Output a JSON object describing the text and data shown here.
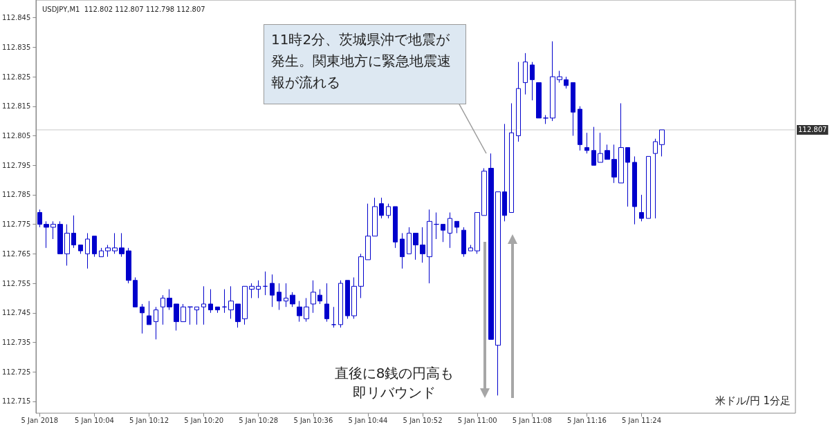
{
  "chart_data": {
    "type": "candlestick",
    "title": "USDJPY,M1  112.802 112.807 112.798 112.807",
    "categories": [
      "5 Jan 2018",
      null,
      null,
      null,
      null,
      null,
      null,
      null,
      "5 Jan 10:04",
      null,
      null,
      null,
      null,
      null,
      null,
      null,
      "5 Jan 10:12",
      null,
      null,
      null,
      null,
      null,
      null,
      null,
      "5 Jan 10:20",
      null,
      null,
      null,
      null,
      null,
      null,
      null,
      "5 Jan 10:28",
      null,
      null,
      null,
      null,
      null,
      null,
      null,
      "5 Jan 10:36",
      null,
      null,
      null,
      null,
      null,
      null,
      null,
      "5 Jan 10:44",
      null,
      null,
      null,
      null,
      null,
      null,
      null,
      "5 Jan 10:52",
      null,
      null,
      null,
      null,
      null,
      null,
      null,
      "5 Jan 11:00",
      null,
      null,
      null,
      null,
      null,
      null,
      null,
      "5 Jan 11:08",
      null,
      null,
      null,
      null,
      null,
      null,
      null,
      "5 Jan 11:16",
      null,
      null,
      null,
      null,
      null,
      null,
      null,
      "5 Jan 11:24",
      null,
      null,
      null
    ],
    "series": [
      {
        "color": "#0000cc",
        "ohlc": [
          [
            112.779,
            112.78,
            112.774,
            112.775
          ],
          [
            112.775,
            112.776,
            112.767,
            112.774
          ],
          [
            112.774,
            112.776,
            112.77,
            112.775
          ],
          [
            112.775,
            112.776,
            112.765,
            112.765
          ],
          [
            112.765,
            112.775,
            112.761,
            112.772
          ],
          [
            112.772,
            112.778,
            112.767,
            112.768
          ],
          [
            112.768,
            112.768,
            112.765,
            112.766
          ],
          [
            112.765,
            112.772,
            112.76,
            112.77
          ],
          [
            112.771,
            112.771,
            112.764,
            112.765
          ],
          [
            112.764,
            112.767,
            112.764,
            112.766
          ],
          [
            112.766,
            112.768,
            112.764,
            112.767
          ],
          [
            112.766,
            112.772,
            112.765,
            112.767
          ],
          [
            112.767,
            112.772,
            112.764,
            112.765
          ],
          [
            112.766,
            112.767,
            112.755,
            112.756
          ],
          [
            112.756,
            112.757,
            112.747,
            112.747
          ],
          [
            112.747,
            112.748,
            112.738,
            112.745
          ],
          [
            112.744,
            112.749,
            112.741,
            112.741
          ],
          [
            112.742,
            112.747,
            112.736,
            112.746
          ],
          [
            112.747,
            112.751,
            112.741,
            112.75
          ],
          [
            112.75,
            112.753,
            112.746,
            112.747
          ],
          [
            112.748,
            112.748,
            112.739,
            112.742
          ],
          [
            112.742,
            112.748,
            112.742,
            112.747
          ],
          [
            112.747,
            112.747,
            112.741,
            112.747
          ],
          [
            112.746,
            112.747,
            112.741,
            112.747
          ],
          [
            112.747,
            112.754,
            112.741,
            112.748
          ],
          [
            112.748,
            112.753,
            112.745,
            112.746
          ],
          [
            112.747,
            112.747,
            112.745,
            112.746
          ],
          [
            112.747,
            112.753,
            112.745,
            112.747
          ],
          [
            112.746,
            112.754,
            112.743,
            112.749
          ],
          [
            112.748,
            112.748,
            112.74,
            112.742
          ],
          [
            112.743,
            112.754,
            112.741,
            112.754
          ],
          [
            112.753,
            112.755,
            112.75,
            112.754
          ],
          [
            112.753,
            112.756,
            112.75,
            112.754
          ],
          [
            112.754,
            112.759,
            112.751,
            112.754
          ],
          [
            112.755,
            112.758,
            112.747,
            112.751
          ],
          [
            112.752,
            112.755,
            112.746,
            112.749
          ],
          [
            112.749,
            112.755,
            112.747,
            112.75
          ],
          [
            112.751,
            112.752,
            112.747,
            112.748
          ],
          [
            112.747,
            112.749,
            112.742,
            112.744
          ],
          [
            112.743,
            112.75,
            112.742,
            112.747
          ],
          [
            112.748,
            112.756,
            112.745,
            112.752
          ],
          [
            112.751,
            112.753,
            112.748,
            112.749
          ],
          [
            112.748,
            112.755,
            112.742,
            112.743
          ],
          [
            112.741,
            112.747,
            112.74,
            112.741
          ],
          [
            112.741,
            112.756,
            112.74,
            112.755
          ],
          [
            112.756,
            112.756,
            112.743,
            112.744
          ],
          [
            112.744,
            112.757,
            112.743,
            112.754
          ],
          [
            112.754,
            112.765,
            112.75,
            112.764
          ],
          [
            112.763,
            112.782,
            112.763,
            112.771
          ],
          [
            112.771,
            112.784,
            112.771,
            112.781
          ],
          [
            112.782,
            112.784,
            112.777,
            112.778
          ],
          [
            112.778,
            112.782,
            112.777,
            112.781
          ],
          [
            112.781,
            112.781,
            112.767,
            112.769
          ],
          [
            112.77,
            112.772,
            112.76,
            112.764
          ],
          [
            112.765,
            112.774,
            112.765,
            112.772
          ],
          [
            112.772,
            112.772,
            112.763,
            112.768
          ],
          [
            112.768,
            112.774,
            112.762,
            112.765
          ],
          [
            112.764,
            112.78,
            112.755,
            112.776
          ],
          [
            112.775,
            112.779,
            112.77,
            112.775
          ],
          [
            112.775,
            112.775,
            112.769,
            112.773
          ],
          [
            112.772,
            112.779,
            112.767,
            112.777
          ],
          [
            112.776,
            112.776,
            112.772,
            112.774
          ],
          [
            112.773,
            112.774,
            112.764,
            112.765
          ],
          [
            112.766,
            112.768,
            112.766,
            112.767
          ],
          [
            112.766,
            112.779,
            112.765,
            112.779
          ],
          [
            112.778,
            112.794,
            112.778,
            112.793
          ],
          [
            112.794,
            112.799,
            112.736,
            112.736
          ],
          [
            112.734,
            112.786,
            112.717,
            112.786
          ],
          [
            112.786,
            112.809,
            112.776,
            112.778
          ],
          [
            112.779,
            112.816,
            112.779,
            112.806
          ],
          [
            112.805,
            112.83,
            112.803,
            112.821
          ],
          [
            112.823,
            112.833,
            112.819,
            112.83
          ],
          [
            112.829,
            112.83,
            112.817,
            112.824
          ],
          [
            112.823,
            112.823,
            112.811,
            112.811
          ],
          [
            112.811,
            112.812,
            112.809,
            112.811
          ],
          [
            112.811,
            112.837,
            112.81,
            112.825
          ],
          [
            112.824,
            112.827,
            112.823,
            112.825
          ],
          [
            112.824,
            112.825,
            112.821,
            112.822
          ],
          [
            112.823,
            112.823,
            112.805,
            112.813
          ],
          [
            112.814,
            112.815,
            112.8,
            112.802
          ],
          [
            112.801,
            112.806,
            112.799,
            112.8
          ],
          [
            112.8,
            112.808,
            112.795,
            112.795
          ],
          [
            112.796,
            112.806,
            112.796,
            112.799
          ],
          [
            112.8,
            112.802,
            112.797,
            112.797
          ],
          [
            112.797,
            112.802,
            112.789,
            112.791
          ],
          [
            112.789,
            112.816,
            112.789,
            112.801
          ],
          [
            112.801,
            112.801,
            112.781,
            112.796
          ],
          [
            112.796,
            112.798,
            112.775,
            112.781
          ],
          [
            112.779,
            112.785,
            112.776,
            112.777
          ],
          [
            112.777,
            112.798,
            112.777,
            112.798
          ],
          [
            112.799,
            112.804,
            112.777,
            112.803
          ],
          [
            112.802,
            112.807,
            112.798,
            112.807
          ]
        ]
      }
    ],
    "ylim": [
      112.711,
      112.851
    ],
    "yticks": [
      {
        "value": 112.715,
        "label": "112.715"
      },
      {
        "value": 112.725,
        "label": "112.725"
      },
      {
        "value": 112.735,
        "label": "112.735"
      },
      {
        "value": 112.745,
        "label": "112.745"
      },
      {
        "value": 112.755,
        "label": "112.755"
      },
      {
        "value": 112.765,
        "label": "112.765"
      },
      {
        "value": 112.775,
        "label": "112.775"
      },
      {
        "value": 112.785,
        "label": "112.785"
      },
      {
        "value": 112.795,
        "label": "112.795"
      },
      {
        "value": 112.805,
        "label": "112.805"
      },
      {
        "value": 112.815,
        "label": "112.815"
      },
      {
        "value": 112.825,
        "label": "112.825"
      },
      {
        "value": 112.835,
        "label": "112.835"
      },
      {
        "value": 112.845,
        "label": "112.845"
      }
    ],
    "ref_lines": [
      {
        "axis": "y",
        "value": 112.807,
        "label": "112.807",
        "color": "#c8c8c8"
      }
    ],
    "annotations": [
      "11時2分、茨城県沖で地震が発生。関東地方に緊急地震速報が流れる",
      "直後に8銭の円高も即リバウンド",
      "米ドル/円 1分足"
    ],
    "grid": false
  }
}
